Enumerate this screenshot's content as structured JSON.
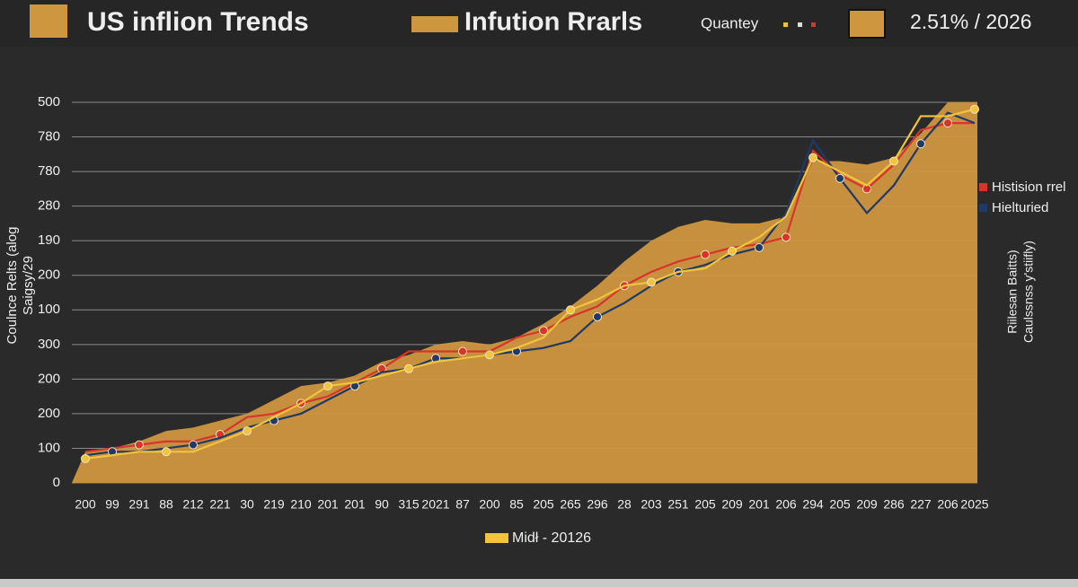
{
  "chart_data": {
    "type": "area_line",
    "title": "US inflion Trends",
    "subtitle": "Infution Rrarls",
    "quantity_label": "Quantey",
    "headline_value": "2.51% / 2026",
    "y_axis_label": [
      "Coulnce Relts (alog",
      "Saigsy/29"
    ],
    "right_notes": [
      "Riilesan Baitts)",
      "Caulssnss y'stiifly)"
    ],
    "categories": [
      "200",
      "99",
      "291",
      "88",
      "212",
      "221",
      "30",
      "219",
      "210",
      "201",
      "201",
      "90",
      "315",
      "2021",
      "87",
      "200",
      "85",
      "205",
      "265",
      "296",
      "28",
      "203",
      "251",
      "205",
      "209",
      "201",
      "206",
      "294",
      "205",
      "209",
      "286",
      "227",
      "206",
      "2025"
    ],
    "ylim": [
      0,
      11
    ],
    "yticks": [
      0,
      {
        "value": 1,
        "label": "100"
      },
      {
        "value": 2,
        "label": "200"
      },
      {
        "value": 3,
        "label": "200"
      },
      {
        "value": 4,
        "label": "300"
      },
      {
        "value": 5,
        "label": "100"
      },
      {
        "value": 6,
        "label": "200"
      },
      {
        "value": 7,
        "label": "190"
      },
      {
        "value": 8,
        "label": "280"
      },
      {
        "value": 9,
        "label": "780"
      },
      {
        "value": 10,
        "label": "780"
      },
      {
        "value": 11,
        "label": "500"
      }
    ],
    "grid": true,
    "series": [
      {
        "name": "Infution Rrarls",
        "kind": "area",
        "color": "#cf9640",
        "values": [
          0.9,
          1.0,
          1.2,
          1.5,
          1.6,
          1.8,
          2.0,
          2.4,
          2.8,
          2.9,
          3.1,
          3.5,
          3.7,
          4.0,
          4.1,
          4.0,
          4.2,
          4.6,
          5.1,
          5.7,
          6.4,
          7.0,
          7.4,
          7.6,
          7.5,
          7.5,
          7.7,
          9.3,
          9.3,
          9.2,
          9.4,
          10.1,
          11.0,
          11.0
        ]
      },
      {
        "name": "Histision rrel",
        "kind": "line",
        "color": "#d8352a",
        "values": [
          0.9,
          1.0,
          1.1,
          1.2,
          1.2,
          1.4,
          1.9,
          2.0,
          2.3,
          2.5,
          2.9,
          3.3,
          3.8,
          3.8,
          3.8,
          3.8,
          4.2,
          4.4,
          4.8,
          5.1,
          5.7,
          6.1,
          6.4,
          6.6,
          6.8,
          6.9,
          7.1,
          9.6,
          8.9,
          8.5,
          9.2,
          10.2,
          10.4,
          10.4
        ]
      },
      {
        "name": "Hielturied",
        "kind": "line",
        "color": "#1f3a66",
        "values": [
          0.8,
          0.9,
          0.9,
          1.0,
          1.1,
          1.3,
          1.6,
          1.8,
          2.0,
          2.4,
          2.8,
          3.2,
          3.3,
          3.6,
          3.6,
          3.7,
          3.8,
          3.9,
          4.1,
          4.8,
          5.2,
          5.7,
          6.1,
          6.3,
          6.6,
          6.8,
          7.8,
          9.9,
          8.8,
          7.8,
          8.6,
          9.8,
          10.7,
          10.4
        ]
      },
      {
        "name": "Midł - 20126",
        "kind": "line",
        "color": "#f2c43b",
        "values": [
          0.7,
          0.8,
          0.9,
          0.9,
          0.9,
          1.2,
          1.5,
          1.9,
          2.3,
          2.8,
          2.9,
          3.1,
          3.3,
          3.5,
          3.6,
          3.7,
          3.9,
          4.2,
          5.0,
          5.3,
          5.7,
          5.8,
          6.1,
          6.2,
          6.7,
          7.1,
          7.7,
          9.4,
          9.0,
          8.6,
          9.3,
          10.6,
          10.6,
          10.8
        ]
      }
    ],
    "legend_position": "right"
  }
}
